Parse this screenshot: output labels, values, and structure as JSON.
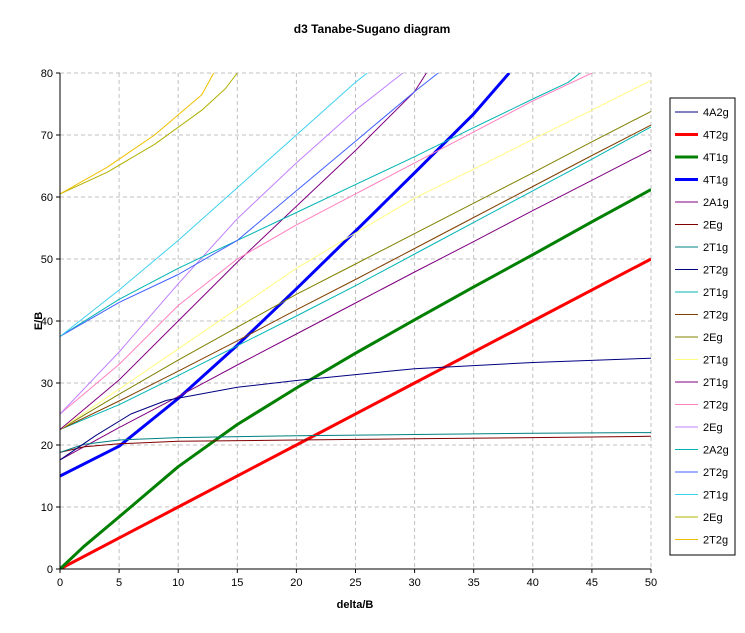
{
  "chart_data": {
    "type": "line",
    "title": "d3 Tanabe-Sugano diagram",
    "xlabel": "delta/B",
    "ylabel": "E/B",
    "xlim": [
      0,
      50
    ],
    "ylim": [
      0,
      80
    ],
    "xticks": [
      0,
      5,
      10,
      15,
      20,
      25,
      30,
      35,
      40,
      45,
      50
    ],
    "yticks": [
      0,
      10,
      20,
      30,
      40,
      50,
      60,
      70,
      80
    ],
    "grid": true,
    "legend_position": "right",
    "series": [
      {
        "name": "4A2g",
        "color": "#000080",
        "bold": false,
        "points": [
          [
            0,
            0
          ],
          [
            50,
            0
          ]
        ]
      },
      {
        "name": "4T2g",
        "color": "#ff0000",
        "bold": true,
        "points": [
          [
            0,
            0
          ],
          [
            10,
            10
          ],
          [
            20,
            20
          ],
          [
            30,
            30
          ],
          [
            40,
            40
          ],
          [
            50,
            50
          ]
        ]
      },
      {
        "name": "4T1g",
        "color": "#008000",
        "bold": true,
        "points": [
          [
            0,
            0
          ],
          [
            2,
            3.6
          ],
          [
            5,
            8.4
          ],
          [
            10,
            16.5
          ],
          [
            15,
            23.3
          ],
          [
            20,
            29.2
          ],
          [
            25,
            34.8
          ],
          [
            30,
            40.2
          ],
          [
            35,
            45.5
          ],
          [
            40,
            50.7
          ],
          [
            45,
            56
          ],
          [
            50,
            61.2
          ]
        ]
      },
      {
        "name": "4T1g",
        "color": "#0000ff",
        "bold": true,
        "points": [
          [
            0,
            15
          ],
          [
            5,
            19.8
          ],
          [
            10,
            27.5
          ],
          [
            15,
            36.1
          ],
          [
            20,
            45.2
          ],
          [
            25,
            54.5
          ],
          [
            30,
            63.9
          ],
          [
            35,
            73.4
          ],
          [
            38,
            80
          ]
        ]
      },
      {
        "name": "2A1g",
        "color": "#800080",
        "bold": false,
        "points": [
          [
            0,
            17.6
          ],
          [
            5,
            22.8
          ],
          [
            10,
            27.8
          ],
          [
            15,
            32.9
          ],
          [
            20,
            37.9
          ],
          [
            25,
            42.9
          ],
          [
            30,
            47.9
          ],
          [
            35,
            52.8
          ],
          [
            40,
            57.8
          ],
          [
            45,
            62.7
          ],
          [
            50,
            67.6
          ]
        ]
      },
      {
        "name": "2Eg",
        "color": "#800000",
        "bold": false,
        "points": [
          [
            0,
            18.8
          ],
          [
            2,
            19.7
          ],
          [
            5,
            20.2
          ],
          [
            10,
            20.6
          ],
          [
            20,
            20.8
          ],
          [
            30,
            21
          ],
          [
            40,
            21.2
          ],
          [
            50,
            21.4
          ]
        ]
      },
      {
        "name": "2T1g",
        "color": "#008080",
        "bold": false,
        "points": [
          [
            0,
            18.8
          ],
          [
            2,
            20.1
          ],
          [
            5,
            20.8
          ],
          [
            10,
            21.2
          ],
          [
            20,
            21.5
          ],
          [
            30,
            21.7
          ],
          [
            40,
            21.9
          ],
          [
            50,
            22
          ]
        ]
      },
      {
        "name": "2T2g",
        "color": "#000080",
        "bold": false,
        "points": [
          [
            0,
            17.6
          ],
          [
            3,
            21.5
          ],
          [
            6,
            25
          ],
          [
            9,
            27.2
          ],
          [
            15,
            29.3
          ],
          [
            20,
            30.4
          ],
          [
            30,
            32.3
          ],
          [
            40,
            33.3
          ],
          [
            50,
            34
          ]
        ]
      },
      {
        "name": "2T1g",
        "color": "#00b4b4",
        "bold": false,
        "points": [
          [
            0,
            22.5
          ],
          [
            5,
            26.5
          ],
          [
            10,
            31.2
          ],
          [
            15,
            36
          ],
          [
            20,
            40.8
          ],
          [
            25,
            45.7
          ],
          [
            30,
            50.8
          ],
          [
            35,
            55.9
          ],
          [
            40,
            61
          ],
          [
            45,
            66.1
          ],
          [
            50,
            71.3
          ]
        ]
      },
      {
        "name": "2T2g",
        "color": "#804000",
        "bold": false,
        "points": [
          [
            0,
            22.5
          ],
          [
            5,
            27.1
          ],
          [
            10,
            31.9
          ],
          [
            15,
            36.8
          ],
          [
            20,
            41.8
          ],
          [
            25,
            46.7
          ],
          [
            30,
            51.7
          ],
          [
            35,
            56.7
          ],
          [
            40,
            61.7
          ],
          [
            45,
            66.7
          ],
          [
            50,
            71.6
          ]
        ]
      },
      {
        "name": "2Eg",
        "color": "#808000",
        "bold": false,
        "points": [
          [
            0,
            22.5
          ],
          [
            5,
            28.2
          ],
          [
            10,
            33.7
          ],
          [
            15,
            39
          ],
          [
            20,
            44.3
          ],
          [
            25,
            49.2
          ],
          [
            30,
            54.1
          ],
          [
            35,
            59
          ],
          [
            40,
            63.9
          ],
          [
            45,
            68.9
          ],
          [
            50,
            73.8
          ]
        ]
      },
      {
        "name": "2T1g",
        "color": "#ffff80",
        "bold": false,
        "points": [
          [
            0,
            22.5
          ],
          [
            5,
            29
          ],
          [
            10,
            35.5
          ],
          [
            15,
            42
          ],
          [
            20,
            48.5
          ],
          [
            25,
            54.2
          ],
          [
            30,
            59.8
          ],
          [
            35,
            64.5
          ],
          [
            40,
            69.3
          ],
          [
            45,
            74
          ],
          [
            50,
            78.8
          ]
        ]
      },
      {
        "name": "2T1g",
        "color": "#800080",
        "bold": false,
        "points": [
          [
            0,
            22.5
          ],
          [
            5,
            30.5
          ],
          [
            10,
            40
          ],
          [
            15,
            49.5
          ],
          [
            20,
            58.5
          ],
          [
            25,
            67.5
          ],
          [
            30,
            77
          ],
          [
            31,
            80
          ]
        ]
      },
      {
        "name": "2T2g",
        "color": "#ff80c0",
        "bold": false,
        "points": [
          [
            0,
            25
          ],
          [
            5,
            33
          ],
          [
            10,
            42.5
          ],
          [
            15,
            50
          ],
          [
            20,
            55.5
          ],
          [
            25,
            60.5
          ],
          [
            30,
            65.5
          ],
          [
            35,
            70.5
          ],
          [
            40,
            75.5
          ],
          [
            45,
            80
          ]
        ]
      },
      {
        "name": "2Eg",
        "color": "#c080ff",
        "bold": false,
        "points": [
          [
            0,
            25
          ],
          [
            5,
            35
          ],
          [
            10,
            46
          ],
          [
            15,
            56.5
          ],
          [
            20,
            65.5
          ],
          [
            25,
            74
          ],
          [
            29,
            80
          ]
        ]
      },
      {
        "name": "2A2g",
        "color": "#00b4b4",
        "bold": false,
        "points": [
          [
            0,
            37.5
          ],
          [
            5,
            43.5
          ],
          [
            10,
            48.5
          ],
          [
            15,
            53
          ],
          [
            20,
            57.5
          ],
          [
            25,
            62
          ],
          [
            30,
            66.5
          ],
          [
            35,
            71.2
          ],
          [
            40,
            75.8
          ],
          [
            43,
            78.5
          ],
          [
            44,
            80
          ]
        ]
      },
      {
        "name": "2T2g",
        "color": "#4060ff",
        "bold": false,
        "points": [
          [
            0,
            37.5
          ],
          [
            5,
            43
          ],
          [
            10,
            47.5
          ],
          [
            15,
            53
          ],
          [
            20,
            61
          ],
          [
            25,
            69
          ],
          [
            30,
            77
          ],
          [
            32,
            80
          ]
        ]
      },
      {
        "name": "2T1g",
        "color": "#40d0f0",
        "bold": false,
        "points": [
          [
            0,
            37.5
          ],
          [
            5,
            45
          ],
          [
            10,
            53
          ],
          [
            15,
            61.5
          ],
          [
            20,
            70
          ],
          [
            25,
            78.5
          ],
          [
            26,
            80
          ]
        ]
      },
      {
        "name": "2Eg",
        "color": "#b0b000",
        "bold": false,
        "points": [
          [
            0,
            60.5
          ],
          [
            4,
            64
          ],
          [
            8,
            68.5
          ],
          [
            12,
            74
          ],
          [
            14,
            77.5
          ],
          [
            15,
            80
          ]
        ]
      },
      {
        "name": "2T2g",
        "color": "#f0c000",
        "bold": false,
        "points": [
          [
            0,
            60.5
          ],
          [
            4,
            64.8
          ],
          [
            8,
            70
          ],
          [
            12,
            76.5
          ],
          [
            13,
            80
          ]
        ]
      }
    ]
  }
}
